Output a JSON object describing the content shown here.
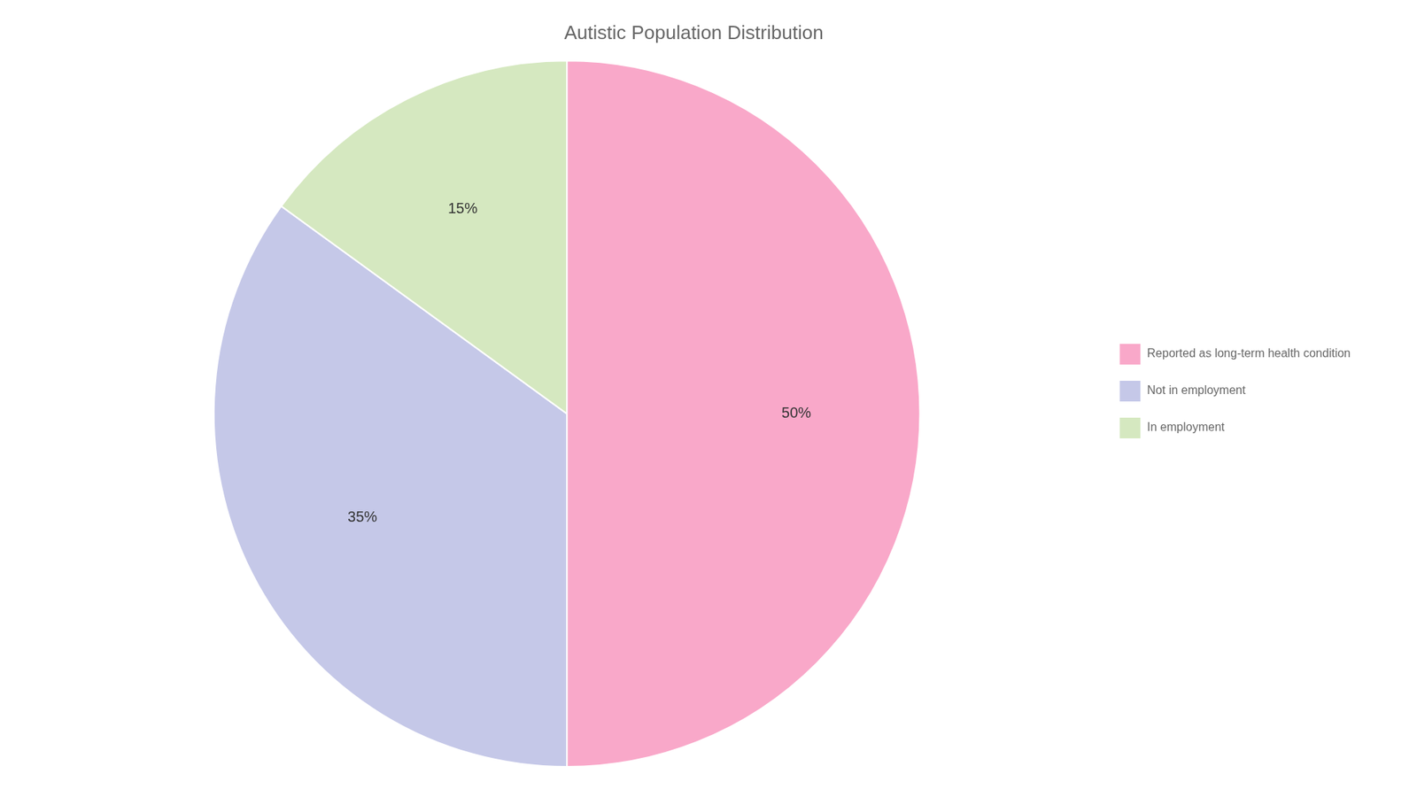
{
  "chart_data": {
    "type": "pie",
    "title": "Autistic Population Distribution",
    "categories": [
      "Reported as long-term health condition",
      "Not in employment",
      "In employment"
    ],
    "values": [
      50,
      35,
      15
    ],
    "value_labels": [
      "50%",
      "35%",
      "15%"
    ],
    "colors": [
      "#F9A8C9",
      "#C5C8E8",
      "#D5E8C0"
    ],
    "data_labels": true,
    "legend": "right"
  }
}
